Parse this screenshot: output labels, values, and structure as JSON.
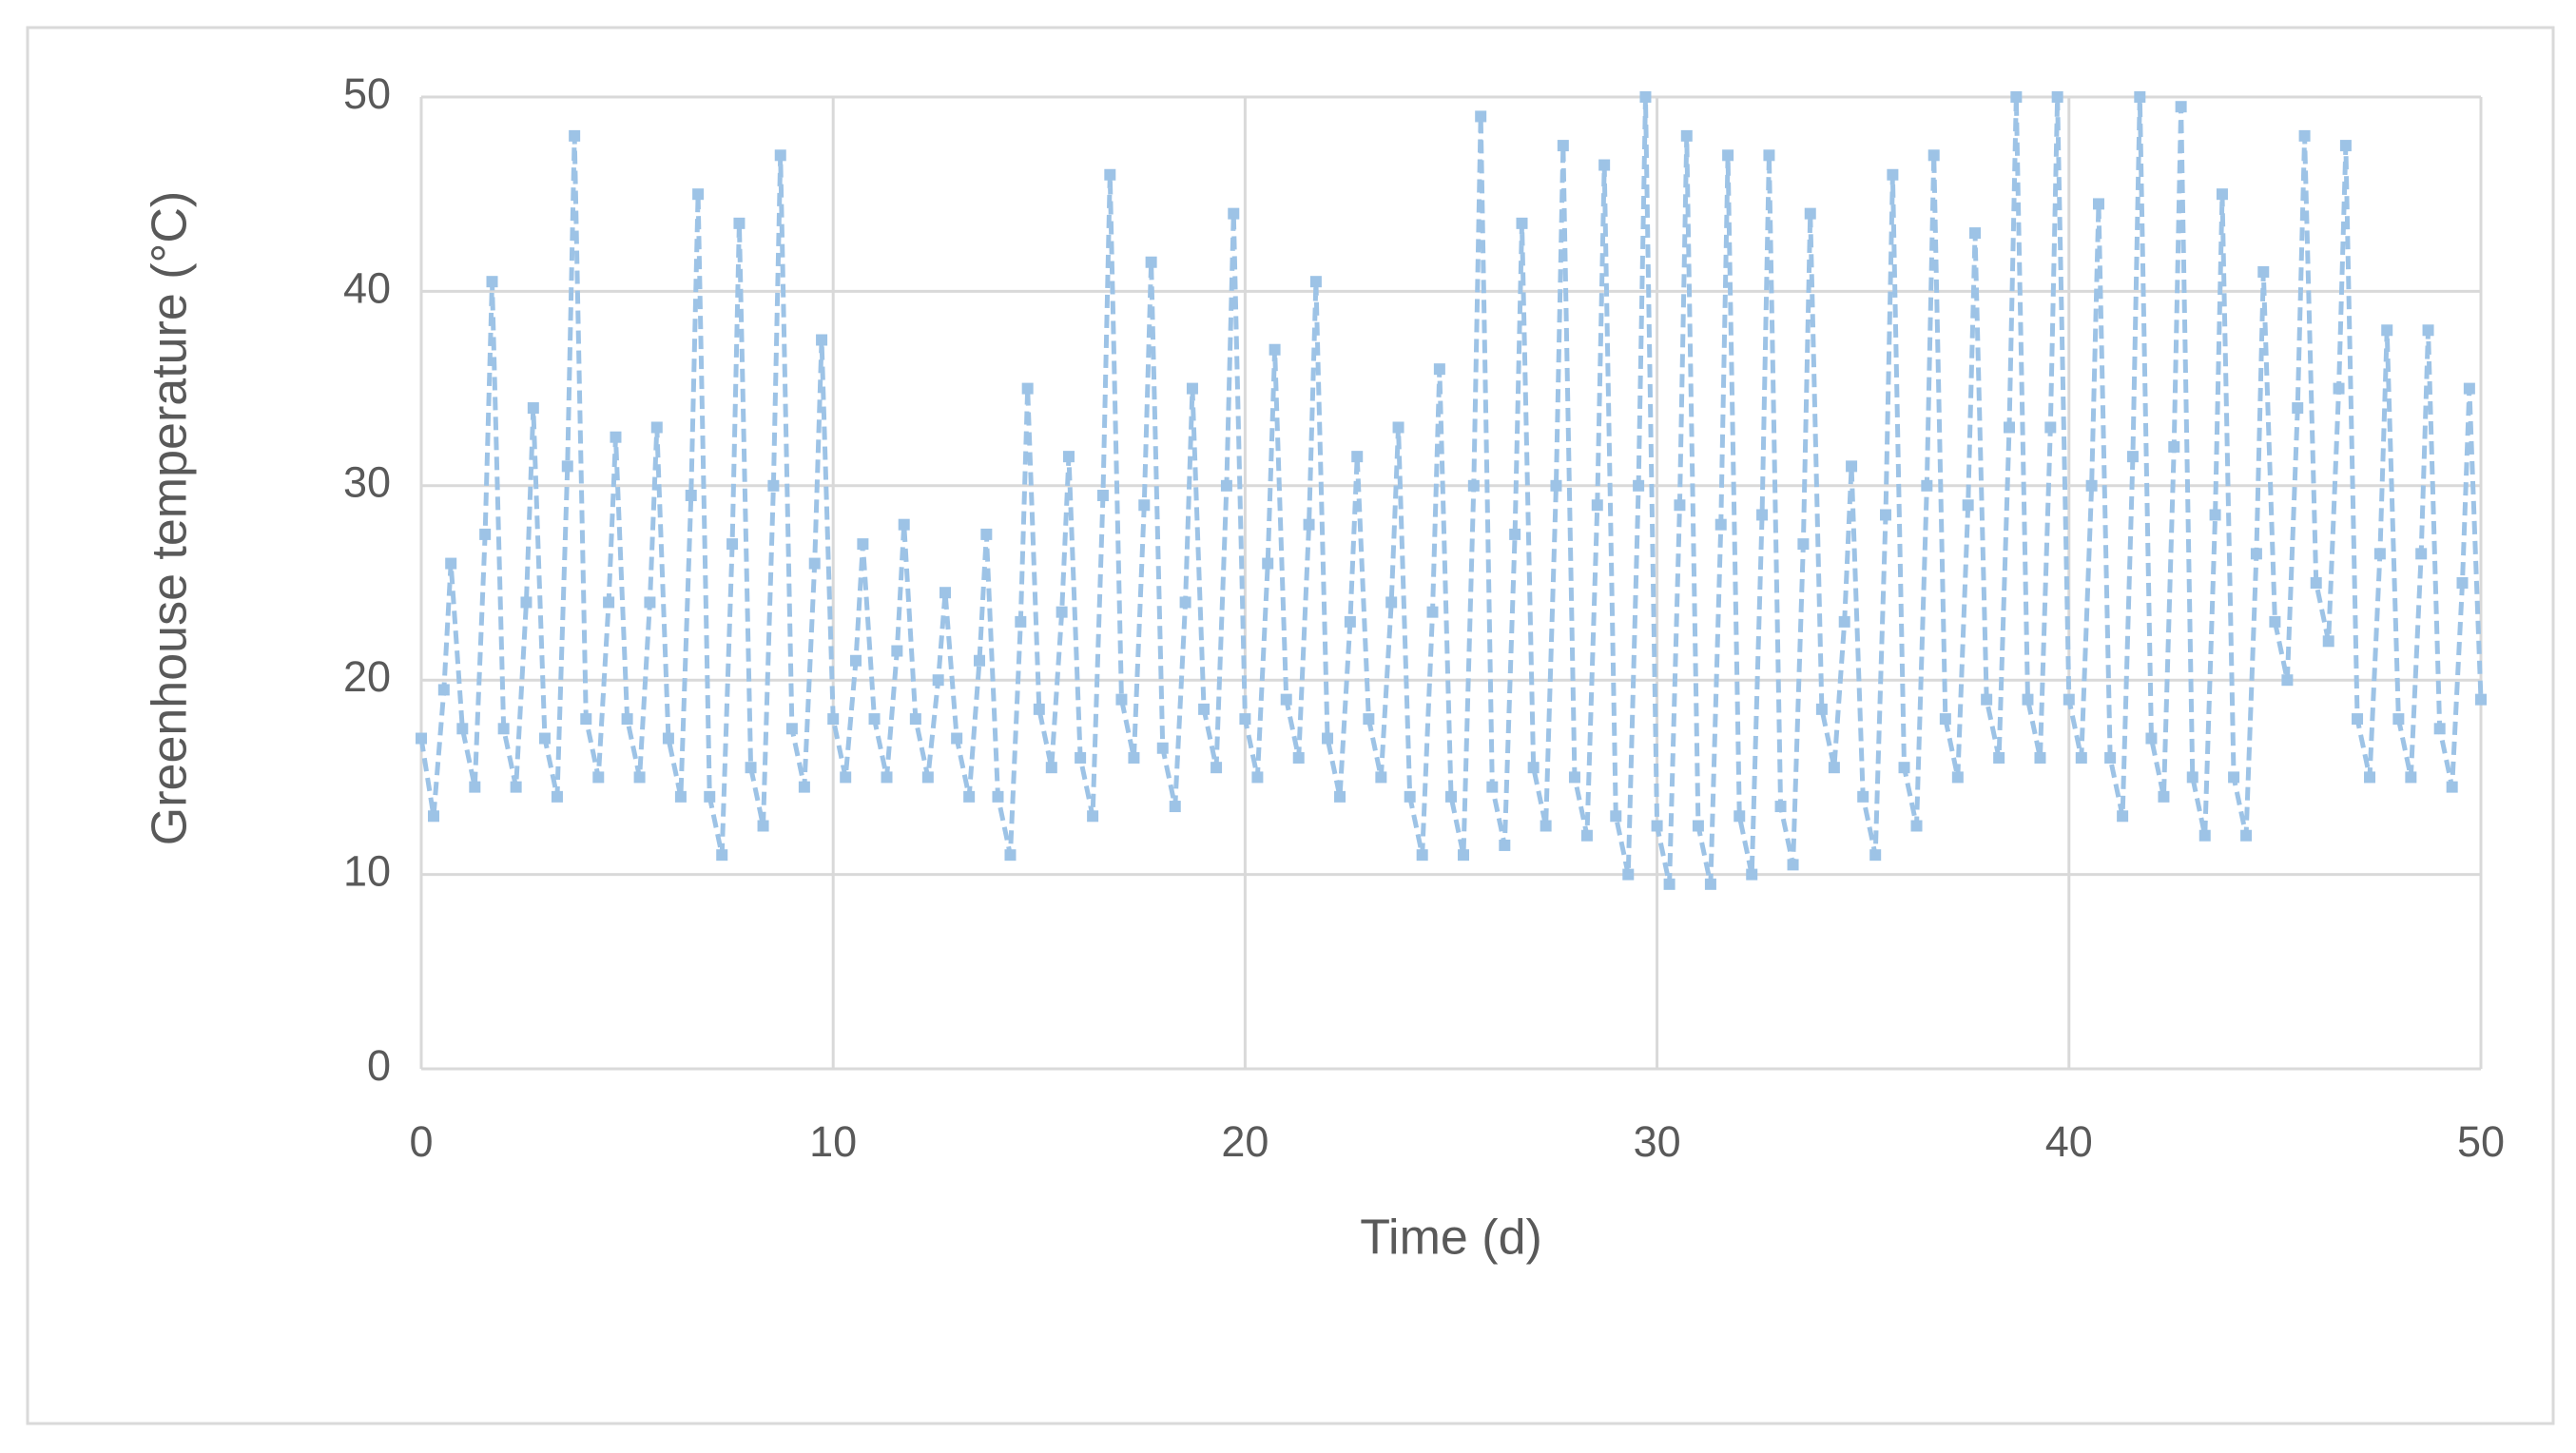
{
  "chart_data": {
    "type": "line",
    "x_label": "Time (d)",
    "y_label": "Greenhouse  temperature   (°C)",
    "color": "#9dc3e6",
    "xlim": [
      0,
      50
    ],
    "xticks": [
      0,
      10,
      20,
      30,
      40,
      50
    ],
    "ylim": [
      0,
      50
    ],
    "yticks": [
      0,
      10,
      20,
      30,
      40,
      50
    ],
    "grid": true,
    "x": [
      0,
      0.3,
      0.55,
      0.72,
      1,
      1.3,
      1.55,
      1.72,
      2,
      2.3,
      2.55,
      2.72,
      3,
      3.3,
      3.55,
      3.72,
      4,
      4.3,
      4.55,
      4.72,
      5,
      5.3,
      5.55,
      5.72,
      6,
      6.3,
      6.55,
      6.72,
      7,
      7.3,
      7.55,
      7.72,
      8,
      8.3,
      8.55,
      8.72,
      9,
      9.3,
      9.55,
      9.72,
      10,
      10.3,
      10.55,
      10.72,
      11,
      11.3,
      11.55,
      11.72,
      12,
      12.3,
      12.55,
      12.72,
      13,
      13.3,
      13.55,
      13.72,
      14,
      14.3,
      14.55,
      14.72,
      15,
      15.3,
      15.55,
      15.72,
      16,
      16.3,
      16.55,
      16.72,
      17,
      17.3,
      17.55,
      17.72,
      18,
      18.3,
      18.55,
      18.72,
      19,
      19.3,
      19.55,
      19.72,
      20,
      20.3,
      20.55,
      20.72,
      21,
      21.3,
      21.55,
      21.72,
      22,
      22.3,
      22.55,
      22.72,
      23,
      23.3,
      23.55,
      23.72,
      24,
      24.3,
      24.55,
      24.72,
      25,
      25.3,
      25.55,
      25.72,
      26,
      26.3,
      26.55,
      26.72,
      27,
      27.3,
      27.55,
      27.72,
      28,
      28.3,
      28.55,
      28.72,
      29,
      29.3,
      29.55,
      29.72,
      30,
      30.3,
      30.55,
      30.72,
      31,
      31.3,
      31.55,
      31.72,
      32,
      32.3,
      32.55,
      32.72,
      33,
      33.3,
      33.55,
      33.72,
      34,
      34.3,
      34.55,
      34.72,
      35,
      35.3,
      35.55,
      35.72,
      36,
      36.3,
      36.55,
      36.72,
      37,
      37.3,
      37.55,
      37.72,
      38,
      38.3,
      38.55,
      38.72,
      39,
      39.3,
      39.55,
      39.72,
      40,
      40.3,
      40.55,
      40.72,
      41,
      41.3,
      41.55,
      41.72,
      42,
      42.3,
      42.55,
      42.72,
      43,
      43.3,
      43.55,
      43.72,
      44,
      44.3,
      44.55,
      44.72,
      45,
      45.3,
      45.55,
      45.72,
      46,
      46.3,
      46.55,
      46.72,
      47,
      47.3,
      47.55,
      47.72,
      48,
      48.3,
      48.55,
      48.72,
      49,
      49.3,
      49.55,
      49.72,
      50
    ],
    "values": [
      17,
      13,
      19.5,
      26,
      17.5,
      14.5,
      27.5,
      40.5,
      17.5,
      14.5,
      24,
      34,
      17,
      14,
      31,
      48,
      18,
      15,
      24,
      32.5,
      18,
      15,
      24,
      33,
      17,
      14,
      29.5,
      45,
      14,
      11,
      27,
      43.5,
      15.5,
      12.5,
      30,
      47,
      17.5,
      14.5,
      26,
      37.5,
      18,
      15,
      21,
      27,
      18,
      15,
      21.5,
      28,
      18,
      15,
      20,
      24.5,
      17,
      14,
      21,
      27.5,
      14,
      11,
      23,
      35,
      18.5,
      15.5,
      23.5,
      31.5,
      16,
      13,
      29.5,
      46,
      19,
      16,
      29,
      41.5,
      16.5,
      13.5,
      24,
      35,
      18.5,
      15.5,
      30,
      44,
      18,
      15,
      26,
      37,
      19,
      16,
      28,
      40.5,
      17,
      14,
      23,
      31.5,
      18,
      15,
      24,
      33,
      14,
      11,
      23.5,
      36,
      14,
      11,
      30,
      49,
      14.5,
      11.5,
      27.5,
      43.5,
      15.5,
      12.5,
      30,
      47.5,
      15,
      12,
      29,
      46.5,
      13,
      10,
      30,
      50,
      12.5,
      9.5,
      29,
      48,
      12.5,
      9.5,
      28,
      47,
      13,
      10,
      28.5,
      47,
      13.5,
      10.5,
      27,
      44,
      18.5,
      15.5,
      23,
      31,
      14,
      11,
      28.5,
      46,
      15.5,
      12.5,
      30,
      47,
      18,
      15,
      29,
      43,
      19,
      16,
      33,
      50,
      19,
      16,
      33,
      50,
      19,
      16,
      30,
      44.5,
      16,
      13,
      31.5,
      50,
      17,
      14,
      32,
      49.5,
      15,
      12,
      28.5,
      45,
      15,
      12,
      26.5,
      41,
      23,
      20,
      34,
      48,
      25,
      22,
      35,
      47.5,
      18,
      15,
      26.5,
      38,
      18,
      15,
      26.5,
      38,
      17.5,
      14.5,
      25,
      35,
      19
    ]
  }
}
